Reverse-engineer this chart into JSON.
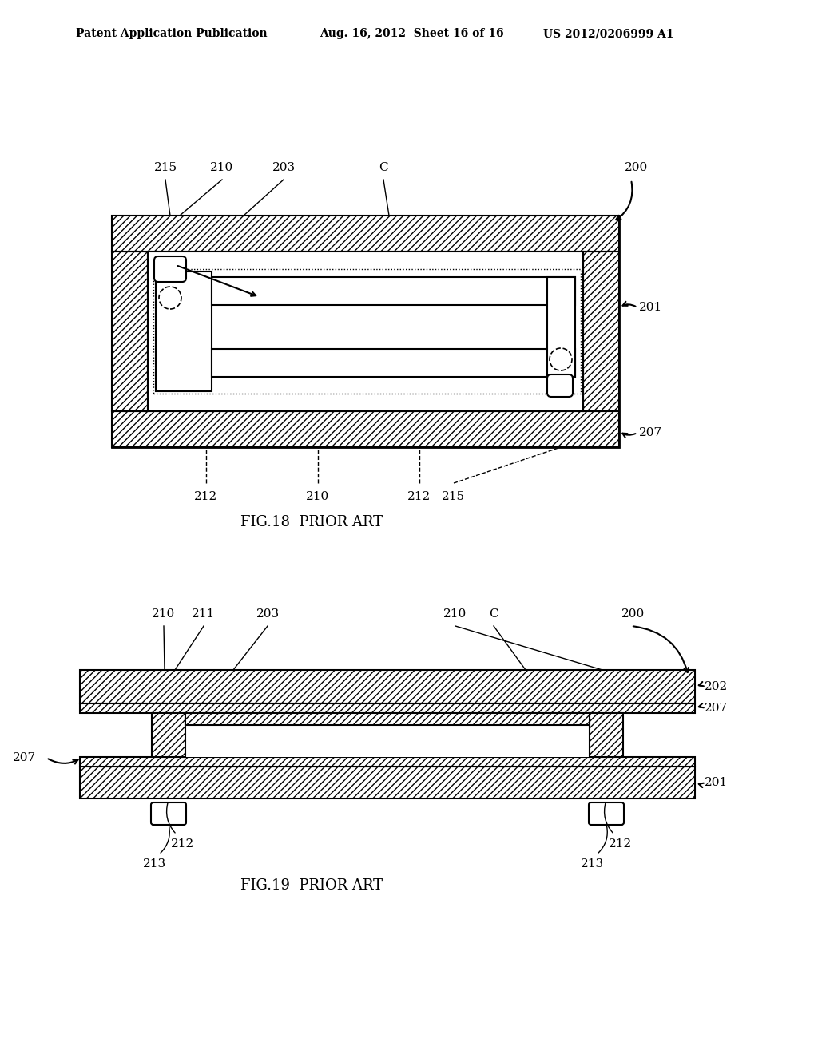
{
  "background_color": "#ffffff",
  "header_left": "Patent Application Publication",
  "header_mid": "Aug. 16, 2012  Sheet 16 of 16",
  "header_right": "US 2012/0206999 A1",
  "fig18_title": "FIG.18  PRIOR ART",
  "fig19_title": "FIG.19  PRIOR ART",
  "line_color": "#000000"
}
